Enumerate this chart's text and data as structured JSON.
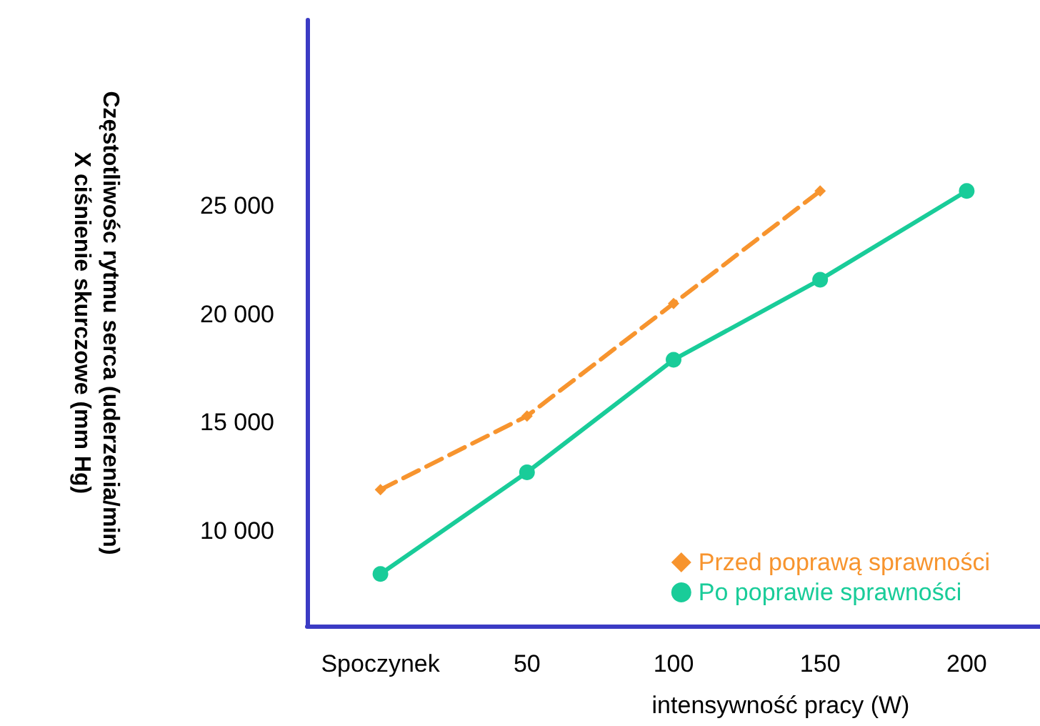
{
  "chart_data": {
    "type": "line",
    "xlabel": "intensywność pracy (W)",
    "ylabel": "Częstotliwośc rytmu serca (uderzenia/min)\nX ciśnienie skurczowe (mm Hg)",
    "categories": [
      "Spoczynek",
      "50",
      "100",
      "150",
      "200"
    ],
    "series": [
      {
        "name": "Przed poprawą sprawności",
        "color": "#f7942e",
        "values": [
          11900,
          15300,
          20500,
          25700,
          null
        ],
        "marker": "diamond",
        "line_style": "dashed"
      },
      {
        "name": "Po poprawie sprawności",
        "color": "#19cc99",
        "values": [
          8000,
          12700,
          17900,
          21600,
          25700
        ],
        "marker": "circle",
        "line_style": "solid"
      }
    ],
    "ylim": [
      5600,
      33600
    ],
    "yticks": [
      {
        "value": 10000,
        "label": "10 000"
      },
      {
        "value": 15000,
        "label": "15 000"
      },
      {
        "value": 20000,
        "label": "20 000"
      },
      {
        "value": 25000,
        "label": "25 000"
      }
    ],
    "grid": false,
    "legend": "bottom right"
  }
}
